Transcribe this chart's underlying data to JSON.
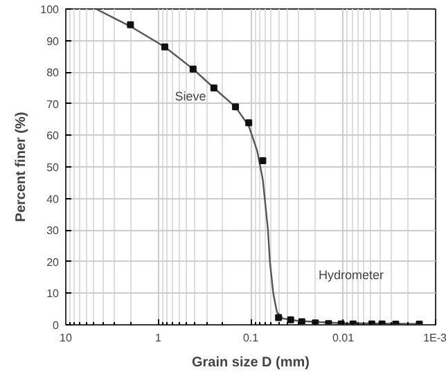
{
  "chart_data": {
    "type": "line",
    "xlabel": "Grain size D (mm)",
    "ylabel": "Percent finer (%)",
    "log": "x",
    "grid": true,
    "xlim": [
      10,
      0.001
    ],
    "xticks": [
      10,
      1,
      0.1,
      0.01,
      {
        "value": 0.001,
        "label": "1E-3"
      }
    ],
    "ylim": [
      0,
      100
    ],
    "yticks": [
      0,
      10,
      20,
      30,
      40,
      50,
      60,
      70,
      80,
      90,
      100
    ],
    "series": [
      {
        "color": "#555555",
        "x": [
          4.7,
          2.0,
          0.85,
          0.42,
          0.25,
          0.146,
          0.105,
          0.085,
          0.074,
          0.065,
          0.062,
          0.057,
          0.052,
          0.045,
          0.03,
          0.01,
          0.0015
        ],
        "values": [
          100,
          94.5,
          88,
          81,
          75,
          69,
          63,
          55,
          46,
          30,
          20,
          10,
          4,
          2,
          1.2,
          0.5,
          0.3
        ]
      },
      {
        "type": "scatter",
        "marker": "square",
        "color": "#111111",
        "x": [
          2.0,
          0.85,
          0.42,
          0.25,
          0.146,
          0.105,
          0.074,
          0.05,
          0.037,
          0.028,
          0.02,
          0.0144,
          0.0105,
          0.0078,
          0.0049,
          0.0038,
          0.0027,
          0.0015
        ],
        "values": [
          95,
          88,
          81,
          75,
          69,
          64,
          52,
          2.3,
          1.6,
          1,
          0.6,
          0.4,
          0.3,
          0.3,
          0.3,
          0.3,
          0.2,
          0.2
        ]
      }
    ],
    "annotations": [
      "Sieve",
      "Hydrometer"
    ]
  }
}
